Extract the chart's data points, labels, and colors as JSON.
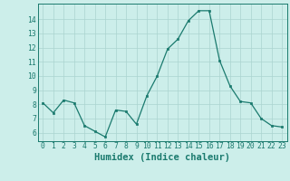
{
  "x": [
    0,
    1,
    2,
    3,
    4,
    5,
    6,
    7,
    8,
    9,
    10,
    11,
    12,
    13,
    14,
    15,
    16,
    17,
    18,
    19,
    20,
    21,
    22,
    23
  ],
  "y": [
    8.1,
    7.4,
    8.3,
    8.1,
    6.5,
    6.1,
    5.7,
    7.6,
    7.5,
    6.6,
    8.6,
    10.0,
    11.9,
    12.6,
    13.9,
    14.6,
    14.6,
    11.1,
    9.3,
    8.2,
    8.1,
    7.0,
    6.5,
    6.4
  ],
  "line_color": "#1a7a6e",
  "marker_color": "#1a7a6e",
  "bg_color": "#cceeea",
  "grid_color": "#aad4cf",
  "xlabel": "Humidex (Indice chaleur)",
  "xlim": [
    -0.5,
    23.5
  ],
  "ylim": [
    5.4,
    15.1
  ],
  "yticks": [
    6,
    7,
    8,
    9,
    10,
    11,
    12,
    13,
    14
  ],
  "xticks": [
    0,
    1,
    2,
    3,
    4,
    5,
    6,
    7,
    8,
    9,
    10,
    11,
    12,
    13,
    14,
    15,
    16,
    17,
    18,
    19,
    20,
    21,
    22,
    23
  ],
  "tick_color": "#1a7a6e",
  "xlabel_fontsize": 7.5,
  "tick_fontsize": 5.8,
  "linewidth": 0.9,
  "markersize": 2.0
}
